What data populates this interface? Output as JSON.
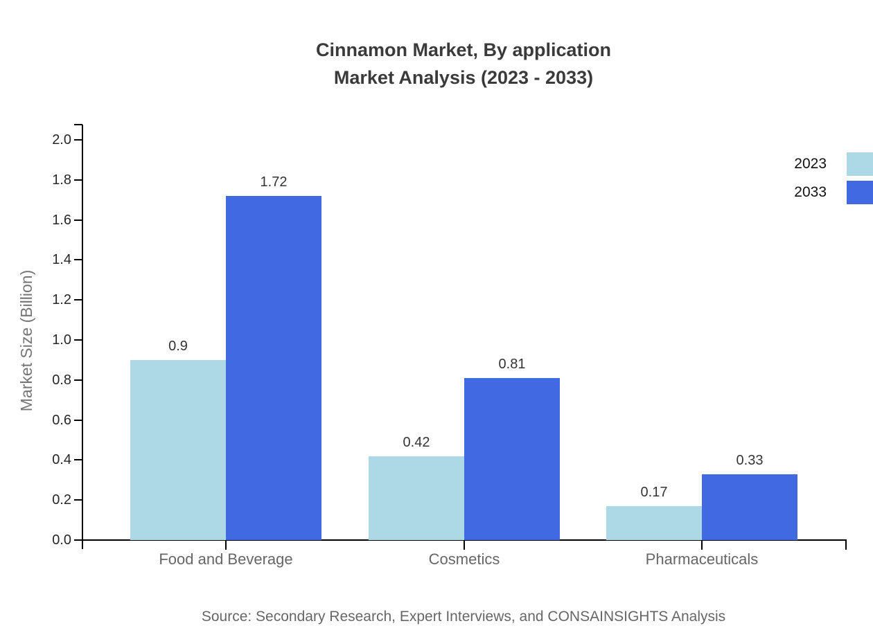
{
  "title": {
    "line1": "Cinnamon Market, By application",
    "line2": "Market Analysis (2023 - 2033)"
  },
  "source_note": "Source: Secondary Research, Expert Interviews, and CONSAINSIGHTS Analysis",
  "chart_data": {
    "type": "bar",
    "title": "Cinnamon Market, By application Market Analysis (2023 - 2033)",
    "categories": [
      "Food and Beverage",
      "Cosmetics",
      "Pharmaceuticals"
    ],
    "series": [
      {
        "name": "2023",
        "color": "#ADD8E6",
        "values": [
          0.9,
          0.42,
          0.17
        ]
      },
      {
        "name": "2033",
        "color": "#4169E1",
        "values": [
          1.72,
          0.81,
          0.33
        ]
      }
    ],
    "xlabel": "",
    "ylabel": "Market Size (Billion)",
    "ylim": [
      0.0,
      2.0
    ],
    "ytick_step": 0.2,
    "ytick_labels": [
      "0.0",
      "0.2",
      "0.4",
      "0.6",
      "0.8",
      "1.0",
      "1.2",
      "1.4",
      "1.6",
      "1.8",
      "2.0"
    ],
    "value_labels": [
      "0.9",
      "1.72",
      "0.42",
      "0.81",
      "0.17",
      "0.33"
    ],
    "grid": false,
    "legend_position": "top-right",
    "axis_color": "#000000"
  }
}
